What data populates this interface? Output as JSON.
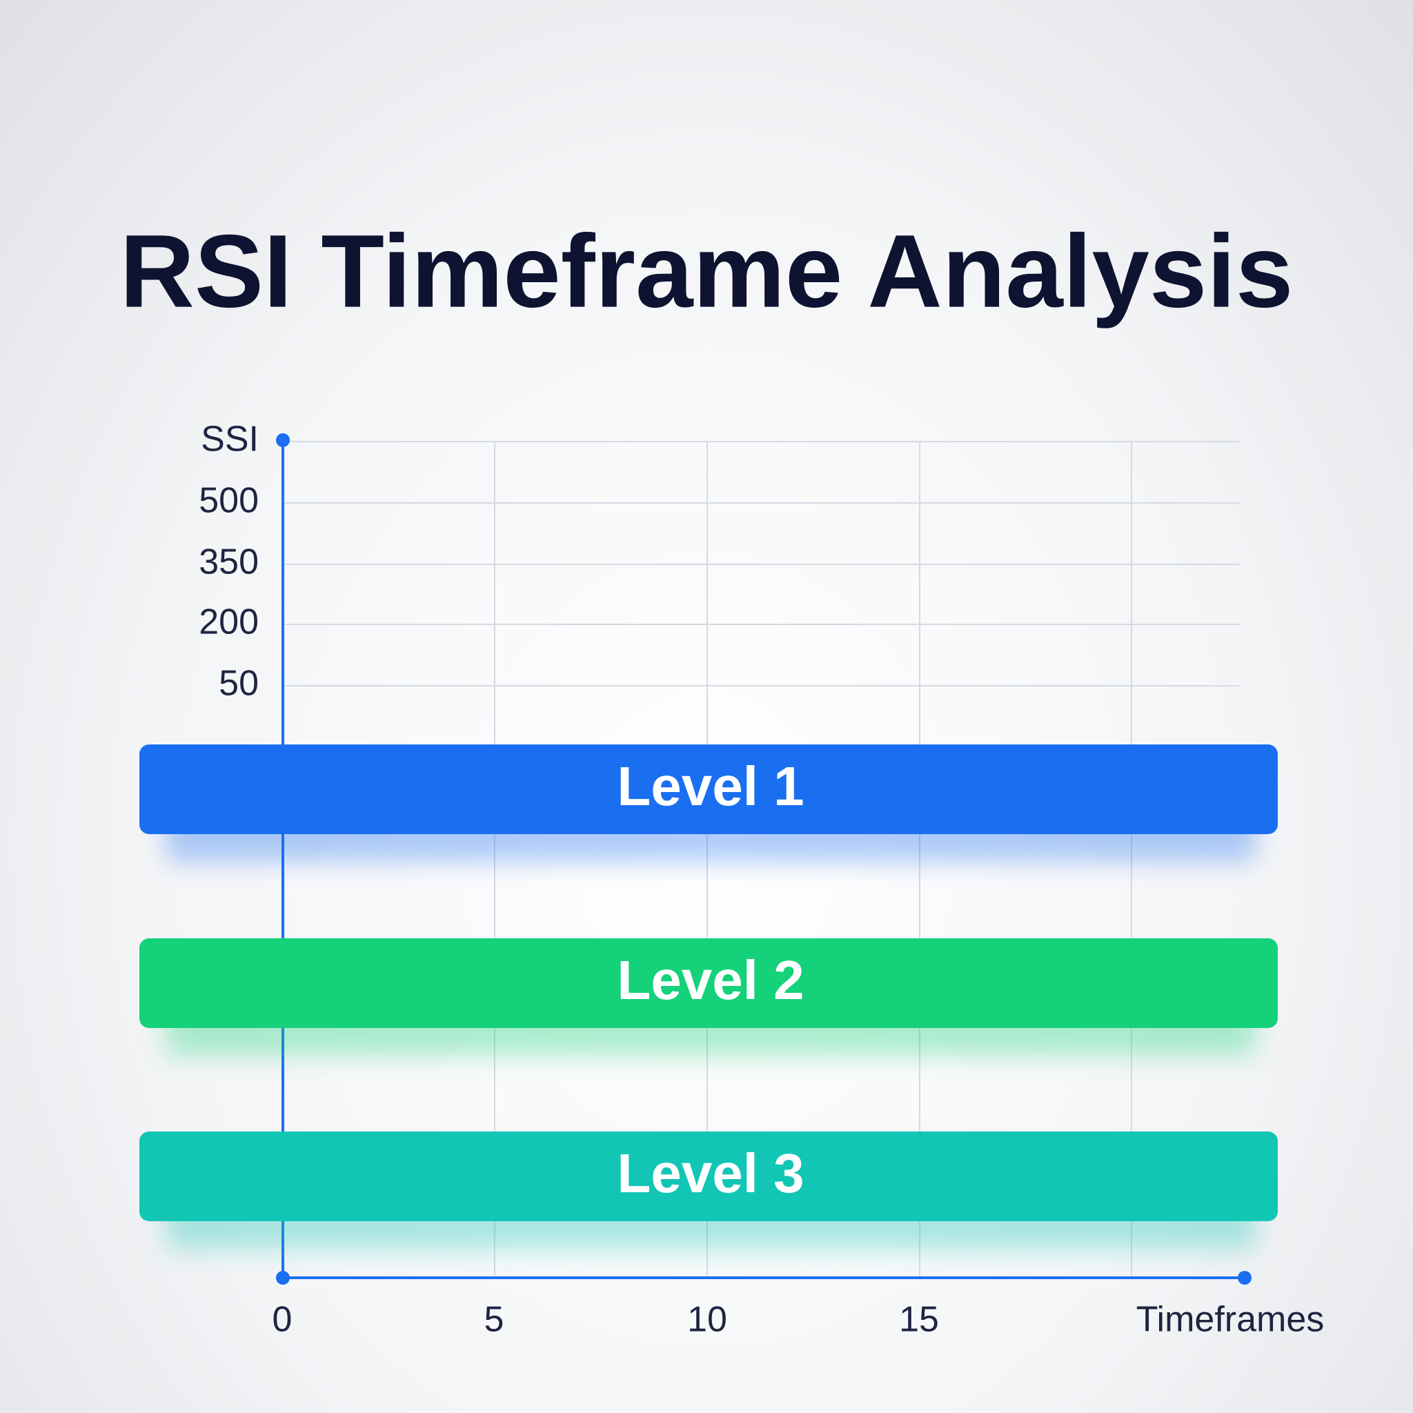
{
  "title": "RSI Timeframe Analysis",
  "y_axis": {
    "labels": [
      "SSI",
      "500",
      "350",
      "200",
      "50"
    ]
  },
  "x_axis": {
    "labels": [
      "0",
      "5",
      "10",
      "15"
    ],
    "title": "Timeframes"
  },
  "levels": [
    {
      "label": "Level 1",
      "color": "#1a6ff0"
    },
    {
      "label": "Level 2",
      "color": "#14d17a"
    },
    {
      "label": "Level 3",
      "color": "#12c6b6"
    }
  ]
}
